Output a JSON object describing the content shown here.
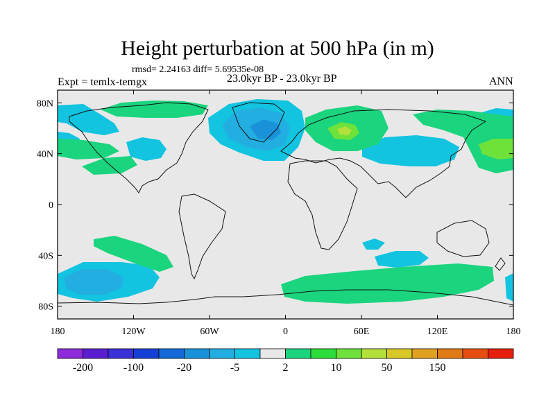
{
  "header": {
    "title": "Height perturbation at 500 hPa (in m)",
    "stats": "rmsd= 2.24163 diff= 5.69535e-08",
    "expt": "Expt = temlx-temgx",
    "period": "23.0kyr BP - 23.0kyr BP",
    "season": "ANN"
  },
  "map": {
    "projection": "cylindrical equidistant",
    "lon_range": [
      -180,
      180
    ],
    "lat_range": [
      -90,
      90
    ],
    "background_color": "#e8e8e8",
    "lat_ticks": [
      {
        "value": 80,
        "label": "80N"
      },
      {
        "value": 40,
        "label": "40N"
      },
      {
        "value": 0,
        "label": "0"
      },
      {
        "value": -40,
        "label": "40S"
      },
      {
        "value": -80,
        "label": "80S"
      }
    ],
    "lon_ticks": [
      {
        "value": -180,
        "label": "180"
      },
      {
        "value": -120,
        "label": "120W"
      },
      {
        "value": -60,
        "label": "60W"
      },
      {
        "value": 0,
        "label": "0"
      },
      {
        "value": 60,
        "label": "60E"
      },
      {
        "value": 120,
        "label": "120E"
      },
      {
        "value": 180,
        "label": "180"
      }
    ]
  },
  "colorbar": {
    "colors": [
      "#8d2ad9",
      "#5a1ed0",
      "#3b2fd8",
      "#1540d6",
      "#1468d8",
      "#1a92d9",
      "#22aee1",
      "#12c4e0",
      "#e8e8e8",
      "#1bd47e",
      "#2ddd3c",
      "#6ee23a",
      "#b4e03c",
      "#d8c827",
      "#e0a020",
      "#e07a16",
      "#e64d10",
      "#e61e0e"
    ],
    "labels": [
      {
        "index": 1,
        "text": "-200"
      },
      {
        "index": 3,
        "text": "-100"
      },
      {
        "index": 5,
        "text": "-20"
      },
      {
        "index": 7,
        "text": "-5"
      },
      {
        "index": 9,
        "text": "2"
      },
      {
        "index": 11,
        "text": "10"
      },
      {
        "index": 13,
        "text": "50"
      },
      {
        "index": 15,
        "text": "150"
      }
    ]
  },
  "chart_data": {
    "type": "contour-fill map",
    "fields": [
      {
        "level": "-5 to -2",
        "color": "#12c4e0",
        "regions": [
          "North Pacific / Alaska",
          "Hudson Bay to Scandinavia",
          "North America east",
          "Central Asia",
          "West Pacific 40N",
          "Southern Ocean 150W",
          "Southern Ocean Indian sector",
          "East of New Zealand"
        ]
      },
      {
        "level": "-20 to -5",
        "color": "#22aee1",
        "regions": [
          "Greenland / North Atlantic",
          "Southern Ocean 150W"
        ]
      },
      {
        "level": "2 to 10",
        "color": "#1bd47e",
        "regions": [
          "Arctic Canada",
          "Western Europe / Urals",
          "North Pacific 160E",
          "South Pacific 30-50S",
          "Southern Ocean Atlantic-Indian sector"
        ]
      },
      {
        "level": "10 to 50",
        "color": "#6ee23a",
        "regions": [
          "Western Russia 50N",
          "Northwest Pacific 40N"
        ]
      }
    ]
  }
}
